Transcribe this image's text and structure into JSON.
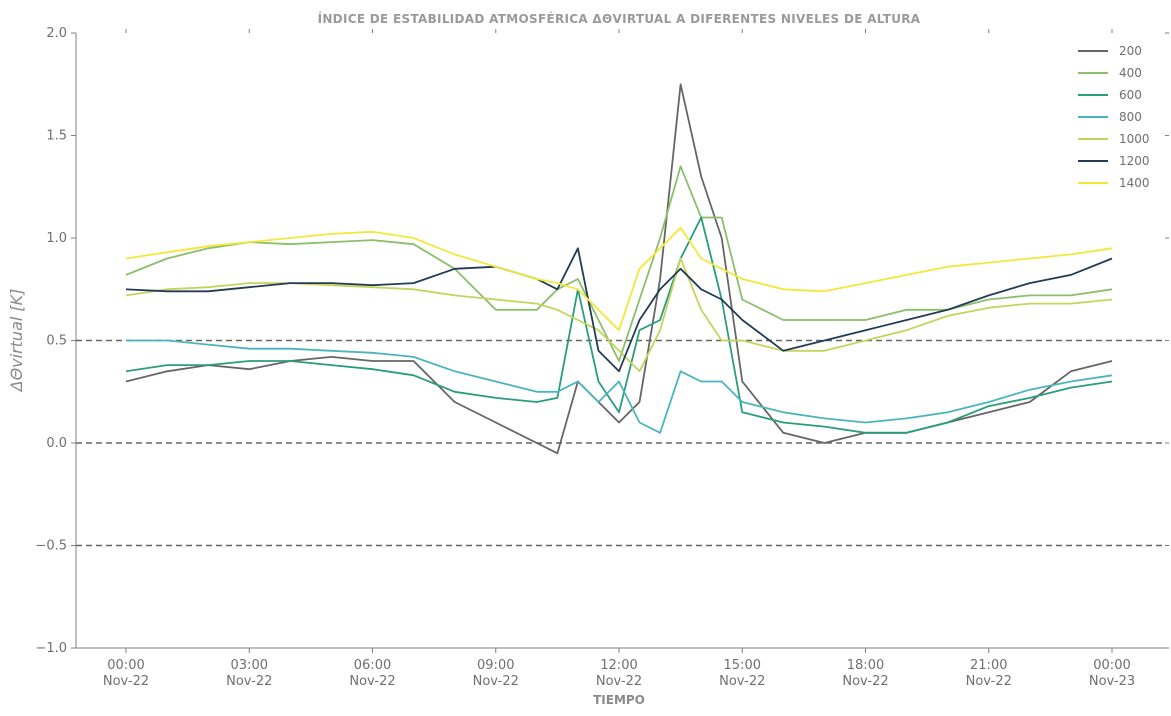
{
  "chart_data": {
    "type": "line",
    "title": "ÍNDICE DE ESTABILIDAD ATMOSFÉRICA ΔΘVIRTUAL A DIFERENTES NIVELES DE ALTURA",
    "xlabel": "TIEMPO",
    "ylabel": "ΔΘvirtual [K]",
    "ylim": [
      -1.0,
      2.0
    ],
    "xlim": [
      "2022-11-22 00:00",
      "2022-11-23 00:00"
    ],
    "yticks": [
      -1.0,
      -0.5,
      0.0,
      0.5,
      1.0,
      1.5,
      2.0
    ],
    "ytick_labels": [
      "−1.0",
      "−0.5",
      "0.0",
      "0.5",
      "1.0",
      "1.5",
      "2.0"
    ],
    "xticks": [
      {
        "time": "2022-11-22 00:00",
        "line1": "00:00",
        "line2": "Nov-22"
      },
      {
        "time": "2022-11-22 03:00",
        "line1": "03:00",
        "line2": "Nov-22"
      },
      {
        "time": "2022-11-22 06:00",
        "line1": "06:00",
        "line2": "Nov-22"
      },
      {
        "time": "2022-11-22 09:00",
        "line1": "09:00",
        "line2": "Nov-22"
      },
      {
        "time": "2022-11-22 12:00",
        "line1": "12:00",
        "line2": "Nov-22"
      },
      {
        "time": "2022-11-22 15:00",
        "line1": "15:00",
        "line2": "Nov-22"
      },
      {
        "time": "2022-11-22 18:00",
        "line1": "18:00",
        "line2": "Nov-22"
      },
      {
        "time": "2022-11-22 21:00",
        "line1": "21:00",
        "line2": "Nov-22"
      },
      {
        "time": "2022-11-23 00:00",
        "line1": "00:00",
        "line2": "Nov-23"
      }
    ],
    "reference_lines": [
      0.5,
      0.0,
      -0.5
    ],
    "grid": false,
    "legend_position": "top-right",
    "series": [
      {
        "name": "200",
        "color": "#666666",
        "x": [
          "2022-11-22 00:00",
          "2022-11-22 01:00",
          "2022-11-22 02:00",
          "2022-11-22 03:00",
          "2022-11-22 04:00",
          "2022-11-22 05:00",
          "2022-11-22 06:00",
          "2022-11-22 07:00",
          "2022-11-22 08:00",
          "2022-11-22 09:00",
          "2022-11-22 10:00",
          "2022-11-22 10:30",
          "2022-11-22 11:00",
          "2022-11-22 11:30",
          "2022-11-22 12:00",
          "2022-11-22 12:30",
          "2022-11-22 13:00",
          "2022-11-22 13:30",
          "2022-11-22 14:00",
          "2022-11-22 14:30",
          "2022-11-22 15:00",
          "2022-11-22 16:00",
          "2022-11-22 17:00",
          "2022-11-22 18:00",
          "2022-11-22 19:00",
          "2022-11-22 20:00",
          "2022-11-22 21:00",
          "2022-11-22 22:00",
          "2022-11-22 23:00",
          "2022-11-23 00:00"
        ],
        "y": [
          0.3,
          0.35,
          0.38,
          0.36,
          0.4,
          0.42,
          0.4,
          0.4,
          0.2,
          0.1,
          0.0,
          -0.05,
          0.3,
          0.2,
          0.1,
          0.2,
          0.8,
          1.75,
          1.3,
          1.0,
          0.3,
          0.05,
          0.0,
          0.05,
          0.05,
          0.1,
          0.15,
          0.2,
          0.35,
          0.4
        ]
      },
      {
        "name": "400",
        "color": "#8bbf6b",
        "x": [
          "2022-11-22 00:00",
          "2022-11-22 01:00",
          "2022-11-22 02:00",
          "2022-11-22 03:00",
          "2022-11-22 04:00",
          "2022-11-22 05:00",
          "2022-11-22 06:00",
          "2022-11-22 07:00",
          "2022-11-22 08:00",
          "2022-11-22 09:00",
          "2022-11-22 10:00",
          "2022-11-22 10:30",
          "2022-11-22 11:00",
          "2022-11-22 11:30",
          "2022-11-22 12:00",
          "2022-11-22 12:30",
          "2022-11-22 13:00",
          "2022-11-22 13:30",
          "2022-11-22 14:00",
          "2022-11-22 14:30",
          "2022-11-22 15:00",
          "2022-11-22 16:00",
          "2022-11-22 17:00",
          "2022-11-22 18:00",
          "2022-11-22 19:00",
          "2022-11-22 20:00",
          "2022-11-22 21:00",
          "2022-11-22 22:00",
          "2022-11-22 23:00",
          "2022-11-23 00:00"
        ],
        "y": [
          0.82,
          0.9,
          0.95,
          0.98,
          0.97,
          0.98,
          0.99,
          0.97,
          0.85,
          0.65,
          0.65,
          0.75,
          0.8,
          0.6,
          0.4,
          0.7,
          1.0,
          1.35,
          1.1,
          1.1,
          0.7,
          0.6,
          0.6,
          0.6,
          0.65,
          0.65,
          0.7,
          0.72,
          0.72,
          0.75
        ]
      },
      {
        "name": "600",
        "color": "#2a9d7c",
        "x": [
          "2022-11-22 00:00",
          "2022-11-22 01:00",
          "2022-11-22 02:00",
          "2022-11-22 03:00",
          "2022-11-22 04:00",
          "2022-11-22 05:00",
          "2022-11-22 06:00",
          "2022-11-22 07:00",
          "2022-11-22 08:00",
          "2022-11-22 09:00",
          "2022-11-22 10:00",
          "2022-11-22 10:30",
          "2022-11-22 11:00",
          "2022-11-22 11:30",
          "2022-11-22 12:00",
          "2022-11-22 12:30",
          "2022-11-22 13:00",
          "2022-11-22 13:30",
          "2022-11-22 14:00",
          "2022-11-22 14:30",
          "2022-11-22 15:00",
          "2022-11-22 16:00",
          "2022-11-22 17:00",
          "2022-11-22 18:00",
          "2022-11-22 19:00",
          "2022-11-22 20:00",
          "2022-11-22 21:00",
          "2022-11-22 22:00",
          "2022-11-22 23:00",
          "2022-11-23 00:00"
        ],
        "y": [
          0.35,
          0.38,
          0.38,
          0.4,
          0.4,
          0.38,
          0.36,
          0.33,
          0.25,
          0.22,
          0.2,
          0.22,
          0.75,
          0.3,
          0.15,
          0.55,
          0.6,
          0.9,
          1.1,
          0.7,
          0.15,
          0.1,
          0.08,
          0.05,
          0.05,
          0.1,
          0.18,
          0.22,
          0.27,
          0.3
        ]
      },
      {
        "name": "800",
        "color": "#4bb5bd",
        "x": [
          "2022-11-22 00:00",
          "2022-11-22 01:00",
          "2022-11-22 02:00",
          "2022-11-22 03:00",
          "2022-11-22 04:00",
          "2022-11-22 05:00",
          "2022-11-22 06:00",
          "2022-11-22 07:00",
          "2022-11-22 08:00",
          "2022-11-22 09:00",
          "2022-11-22 10:00",
          "2022-11-22 10:30",
          "2022-11-22 11:00",
          "2022-11-22 11:30",
          "2022-11-22 12:00",
          "2022-11-22 12:30",
          "2022-11-22 13:00",
          "2022-11-22 13:30",
          "2022-11-22 14:00",
          "2022-11-22 14:30",
          "2022-11-22 15:00",
          "2022-11-22 16:00",
          "2022-11-22 17:00",
          "2022-11-22 18:00",
          "2022-11-22 19:00",
          "2022-11-22 20:00",
          "2022-11-22 21:00",
          "2022-11-22 22:00",
          "2022-11-22 23:00",
          "2022-11-23 00:00"
        ],
        "y": [
          0.5,
          0.5,
          0.48,
          0.46,
          0.46,
          0.45,
          0.44,
          0.42,
          0.35,
          0.3,
          0.25,
          0.25,
          0.3,
          0.2,
          0.3,
          0.1,
          0.05,
          0.35,
          0.3,
          0.3,
          0.2,
          0.15,
          0.12,
          0.1,
          0.12,
          0.15,
          0.2,
          0.26,
          0.3,
          0.33
        ]
      },
      {
        "name": "1000",
        "color": "#c4d45c",
        "x": [
          "2022-11-22 00:00",
          "2022-11-22 01:00",
          "2022-11-22 02:00",
          "2022-11-22 03:00",
          "2022-11-22 04:00",
          "2022-11-22 05:00",
          "2022-11-22 06:00",
          "2022-11-22 07:00",
          "2022-11-22 08:00",
          "2022-11-22 09:00",
          "2022-11-22 10:00",
          "2022-11-22 10:30",
          "2022-11-22 11:00",
          "2022-11-22 11:30",
          "2022-11-22 12:00",
          "2022-11-22 12:30",
          "2022-11-22 13:00",
          "2022-11-22 13:30",
          "2022-11-22 14:00",
          "2022-11-22 14:30",
          "2022-11-22 15:00",
          "2022-11-22 16:00",
          "2022-11-22 17:00",
          "2022-11-22 18:00",
          "2022-11-22 19:00",
          "2022-11-22 20:00",
          "2022-11-22 21:00",
          "2022-11-22 22:00",
          "2022-11-22 23:00",
          "2022-11-23 00:00"
        ],
        "y": [
          0.72,
          0.75,
          0.76,
          0.78,
          0.78,
          0.77,
          0.76,
          0.75,
          0.72,
          0.7,
          0.68,
          0.65,
          0.6,
          0.55,
          0.45,
          0.35,
          0.55,
          0.9,
          0.65,
          0.5,
          0.5,
          0.45,
          0.45,
          0.5,
          0.55,
          0.62,
          0.66,
          0.68,
          0.68,
          0.7
        ]
      },
      {
        "name": "1200",
        "color": "#243b55",
        "x": [
          "2022-11-22 00:00",
          "2022-11-22 01:00",
          "2022-11-22 02:00",
          "2022-11-22 03:00",
          "2022-11-22 04:00",
          "2022-11-22 05:00",
          "2022-11-22 06:00",
          "2022-11-22 07:00",
          "2022-11-22 08:00",
          "2022-11-22 09:00",
          "2022-11-22 10:00",
          "2022-11-22 10:30",
          "2022-11-22 11:00",
          "2022-11-22 11:30",
          "2022-11-22 12:00",
          "2022-11-22 12:30",
          "2022-11-22 13:00",
          "2022-11-22 13:30",
          "2022-11-22 14:00",
          "2022-11-22 14:30",
          "2022-11-22 15:00",
          "2022-11-22 16:00",
          "2022-11-22 17:00",
          "2022-11-22 18:00",
          "2022-11-22 19:00",
          "2022-11-22 20:00",
          "2022-11-22 21:00",
          "2022-11-22 22:00",
          "2022-11-22 23:00",
          "2022-11-23 00:00"
        ],
        "y": [
          0.75,
          0.74,
          0.74,
          0.76,
          0.78,
          0.78,
          0.77,
          0.78,
          0.85,
          0.86,
          0.8,
          0.75,
          0.95,
          0.45,
          0.35,
          0.6,
          0.75,
          0.85,
          0.75,
          0.7,
          0.6,
          0.45,
          0.5,
          0.55,
          0.6,
          0.65,
          0.72,
          0.78,
          0.82,
          0.9
        ]
      },
      {
        "name": "1400",
        "color": "#f3e83a",
        "x": [
          "2022-11-22 00:00",
          "2022-11-22 01:00",
          "2022-11-22 02:00",
          "2022-11-22 03:00",
          "2022-11-22 04:00",
          "2022-11-22 05:00",
          "2022-11-22 06:00",
          "2022-11-22 07:00",
          "2022-11-22 08:00",
          "2022-11-22 09:00",
          "2022-11-22 10:00",
          "2022-11-22 10:30",
          "2022-11-22 11:00",
          "2022-11-22 11:30",
          "2022-11-22 12:00",
          "2022-11-22 12:30",
          "2022-11-22 13:00",
          "2022-11-22 13:30",
          "2022-11-22 14:00",
          "2022-11-22 14:30",
          "2022-11-22 15:00",
          "2022-11-22 16:00",
          "2022-11-22 17:00",
          "2022-11-22 18:00",
          "2022-11-22 19:00",
          "2022-11-22 20:00",
          "2022-11-22 21:00",
          "2022-11-22 22:00",
          "2022-11-22 23:00",
          "2022-11-23 00:00"
        ],
        "y": [
          0.9,
          0.93,
          0.96,
          0.98,
          1.0,
          1.02,
          1.03,
          1.0,
          0.92,
          0.86,
          0.8,
          0.78,
          0.75,
          0.65,
          0.55,
          0.85,
          0.95,
          1.05,
          0.9,
          0.85,
          0.8,
          0.75,
          0.74,
          0.78,
          0.82,
          0.86,
          0.88,
          0.9,
          0.92,
          0.95
        ]
      }
    ]
  }
}
